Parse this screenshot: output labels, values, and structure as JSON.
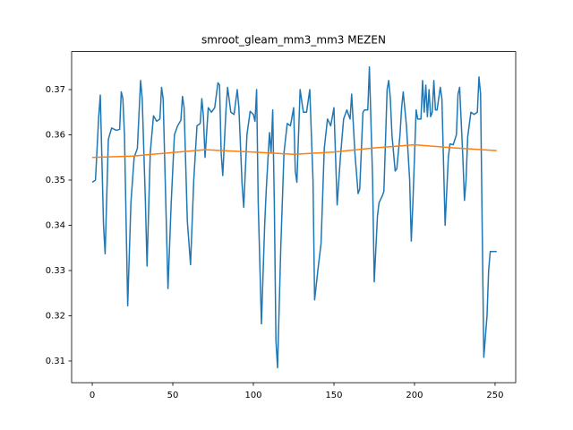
{
  "chart_data": {
    "type": "line",
    "title": "smroot_gleam_mm3_mm3 MEZEN",
    "xlim": [
      -12.8,
      262.8
    ],
    "ylim": [
      0.3052,
      0.3784
    ],
    "xticks": [
      0,
      50,
      100,
      150,
      200,
      250
    ],
    "yticks": [
      0.31,
      0.32,
      0.33,
      0.34,
      0.35,
      0.36,
      0.37
    ],
    "series": [
      {
        "color": "#1f77b4",
        "x": [
          0,
          2,
          4,
          5,
          7,
          8,
          10,
          12,
          15,
          17,
          18,
          19,
          20,
          22,
          24,
          26,
          28,
          30,
          31,
          33,
          34,
          36,
          38,
          40,
          42,
          43,
          44,
          46,
          47,
          49,
          51,
          53,
          55,
          56,
          57,
          59,
          61,
          63,
          65,
          67,
          68,
          69,
          70,
          72,
          74,
          76,
          78,
          79,
          80,
          81,
          83,
          84,
          86,
          88,
          90,
          91,
          93,
          94,
          96,
          98,
          100,
          101,
          102,
          103,
          105,
          107,
          108,
          110,
          111,
          112,
          113,
          114,
          115,
          117,
          119,
          121,
          123,
          125,
          126,
          127,
          129,
          131,
          133,
          135,
          137,
          138,
          140,
          142,
          144,
          146,
          148,
          150,
          152,
          154,
          156,
          158,
          160,
          161,
          163,
          165,
          166,
          168,
          169,
          171,
          172,
          174,
          175,
          177,
          178,
          180,
          181,
          183,
          184,
          185,
          186,
          188,
          189,
          191,
          192,
          193,
          195,
          197,
          198,
          199,
          201,
          202,
          204,
          205,
          206,
          207,
          208,
          209,
          210,
          211,
          212,
          213,
          214,
          216,
          217,
          219,
          221,
          222,
          224,
          226,
          227,
          228,
          230,
          231,
          232,
          233,
          235,
          237,
          239,
          240,
          241,
          243,
          245,
          246,
          247,
          251
        ],
        "values": [
          0.3495,
          0.35,
          0.364,
          0.3688,
          0.34,
          0.3337,
          0.359,
          0.3615,
          0.361,
          0.3612,
          0.3695,
          0.368,
          0.36,
          0.3222,
          0.345,
          0.355,
          0.357,
          0.372,
          0.368,
          0.345,
          0.331,
          0.356,
          0.3642,
          0.363,
          0.3635,
          0.3705,
          0.368,
          0.34,
          0.326,
          0.345,
          0.36,
          0.362,
          0.3632,
          0.3685,
          0.366,
          0.341,
          0.3313,
          0.35,
          0.362,
          0.3625,
          0.368,
          0.364,
          0.355,
          0.366,
          0.365,
          0.366,
          0.3715,
          0.371,
          0.356,
          0.351,
          0.3655,
          0.3705,
          0.365,
          0.3645,
          0.37,
          0.366,
          0.349,
          0.344,
          0.36,
          0.3652,
          0.3645,
          0.363,
          0.37,
          0.345,
          0.3182,
          0.34,
          0.348,
          0.3605,
          0.356,
          0.3655,
          0.345,
          0.3145,
          0.3085,
          0.335,
          0.356,
          0.3625,
          0.362,
          0.366,
          0.352,
          0.3495,
          0.37,
          0.365,
          0.365,
          0.37,
          0.35,
          0.3235,
          0.33,
          0.336,
          0.357,
          0.3635,
          0.362,
          0.366,
          0.3445,
          0.355,
          0.3635,
          0.3655,
          0.3635,
          0.369,
          0.356,
          0.347,
          0.348,
          0.365,
          0.3655,
          0.3655,
          0.375,
          0.35,
          0.3275,
          0.342,
          0.345,
          0.3465,
          0.3475,
          0.37,
          0.372,
          0.368,
          0.36,
          0.352,
          0.3525,
          0.36,
          0.366,
          0.3695,
          0.362,
          0.35,
          0.3365,
          0.345,
          0.3655,
          0.3635,
          0.3635,
          0.372,
          0.365,
          0.371,
          0.364,
          0.37,
          0.364,
          0.365,
          0.372,
          0.3655,
          0.3655,
          0.3705,
          0.368,
          0.34,
          0.355,
          0.358,
          0.3578,
          0.36,
          0.369,
          0.3705,
          0.355,
          0.3455,
          0.35,
          0.3595,
          0.365,
          0.3645,
          0.365,
          0.3728,
          0.369,
          0.3108,
          0.32,
          0.33,
          0.3342,
          0.3342
        ]
      },
      {
        "color": "#ff7f0e",
        "x": [
          0,
          25,
          50,
          70,
          100,
          125,
          150,
          175,
          200,
          225,
          251
        ],
        "values": [
          0.355,
          0.3553,
          0.3561,
          0.3567,
          0.3562,
          0.3557,
          0.3562,
          0.3571,
          0.3578,
          0.3571,
          0.3565
        ]
      }
    ]
  }
}
